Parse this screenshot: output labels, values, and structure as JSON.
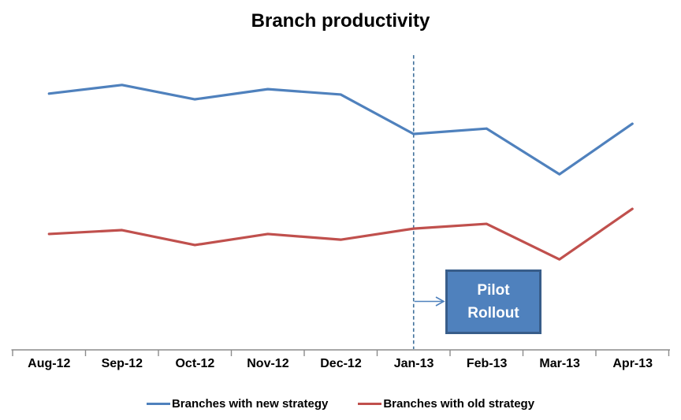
{
  "title": "Branch productivity",
  "annotation_box": {
    "line1": "Pilot",
    "line2": "Rollout"
  },
  "legend": {
    "items": [
      {
        "label": "Branches with new strategy",
        "color": "#4F81BD"
      },
      {
        "label": "Branches with old strategy",
        "color": "#C0504D"
      }
    ]
  },
  "colors": {
    "axis": "#8C8C8C",
    "dashed_line": "#41719C",
    "arrow": "#4F81BD",
    "box_fill": "#4F81BD",
    "box_border": "#385D8A",
    "box_text": "#FFFFFF",
    "title_text": "#000000"
  },
  "chart_data": {
    "type": "line",
    "title": "Branch productivity",
    "categories": [
      "Aug-12",
      "Sep-12",
      "Oct-12",
      "Nov-12",
      "Dec-12",
      "Jan-13",
      "Feb-13",
      "Mar-13",
      "Apr-13"
    ],
    "series": [
      {
        "name": "Branches with new strategy",
        "color": "#4F81BD",
        "values": [
          85.8,
          88.7,
          83.9,
          87.3,
          85.5,
          72.3,
          74.1,
          58.8,
          75.7
        ]
      },
      {
        "name": "Branches with old strategy",
        "color": "#C0504D",
        "values": [
          38.8,
          40.1,
          35.1,
          38.8,
          36.9,
          40.6,
          42.2,
          30.3,
          47.2
        ]
      }
    ],
    "xlabel": "",
    "ylabel": "",
    "ylim": [
      0,
      100
    ],
    "grid": false,
    "y_axis_visible": false,
    "legend_position": "bottom",
    "annotations": [
      {
        "type": "dashed-vline",
        "category": "Jan-13"
      },
      {
        "type": "callout-box",
        "text": "Pilot Rollout",
        "points_to_category": "Jan-13"
      }
    ]
  }
}
